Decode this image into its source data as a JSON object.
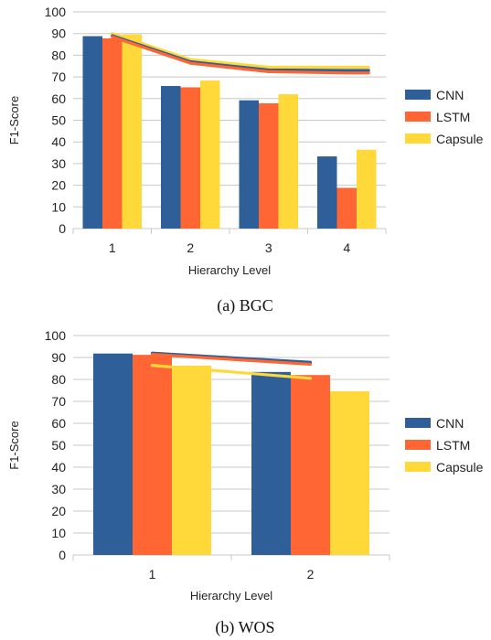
{
  "chart_data": [
    {
      "type": "bar",
      "caption": "(a) BGC",
      "categories": [
        "1",
        "2",
        "3",
        "4"
      ],
      "xlabel": "Hierarchy Level",
      "ylabel": "F1-Score",
      "ylim": [
        0,
        100
      ],
      "yticks": [
        0,
        10,
        20,
        30,
        40,
        50,
        60,
        70,
        80,
        90,
        100
      ],
      "grid": true,
      "legend": "right",
      "series": [
        {
          "name": "CNN",
          "color": "#2f5f98",
          "values": [
            88.8,
            65.8,
            59.2,
            33.3
          ]
        },
        {
          "name": "LSTM",
          "color": "#ff6633",
          "values": [
            87.8,
            65.2,
            57.8,
            18.8
          ]
        },
        {
          "name": "Capsule",
          "color": "#ffd83a",
          "values": [
            89.6,
            68.3,
            62.0,
            36.4
          ]
        }
      ],
      "lines": [
        {
          "name": "Capsule",
          "color": "#ffd83a",
          "values": [
            90.0,
            78.0,
            74.5,
            74.5
          ]
        },
        {
          "name": "CNN",
          "color": "#2f5f98",
          "values": [
            89.0,
            77.0,
            73.2,
            73.0
          ]
        },
        {
          "name": "LSTM",
          "color": "#ff6633",
          "values": [
            88.5,
            76.3,
            72.4,
            71.8
          ]
        }
      ]
    },
    {
      "type": "bar",
      "caption": "(b) WOS",
      "categories": [
        "1",
        "2"
      ],
      "xlabel": "Hierarchy Level",
      "ylabel": "F1-Score",
      "ylim": [
        0,
        100
      ],
      "yticks": [
        0,
        10,
        20,
        30,
        40,
        50,
        60,
        70,
        80,
        90,
        100
      ],
      "grid": true,
      "legend": "right",
      "series": [
        {
          "name": "CNN",
          "color": "#2f5f98",
          "values": [
            91.8,
            83.4
          ]
        },
        {
          "name": "LSTM",
          "color": "#ff6633",
          "values": [
            91.2,
            82.0
          ]
        },
        {
          "name": "Capsule",
          "color": "#ffd83a",
          "values": [
            86.3,
            74.6
          ]
        }
      ],
      "lines": [
        {
          "name": "CNN",
          "color": "#2f5f98",
          "values": [
            92.0,
            87.8
          ]
        },
        {
          "name": "LSTM",
          "color": "#ff6633",
          "values": [
            91.4,
            86.9
          ]
        },
        {
          "name": "Capsule",
          "color": "#ffd83a",
          "values": [
            86.4,
            80.5
          ]
        }
      ]
    }
  ]
}
